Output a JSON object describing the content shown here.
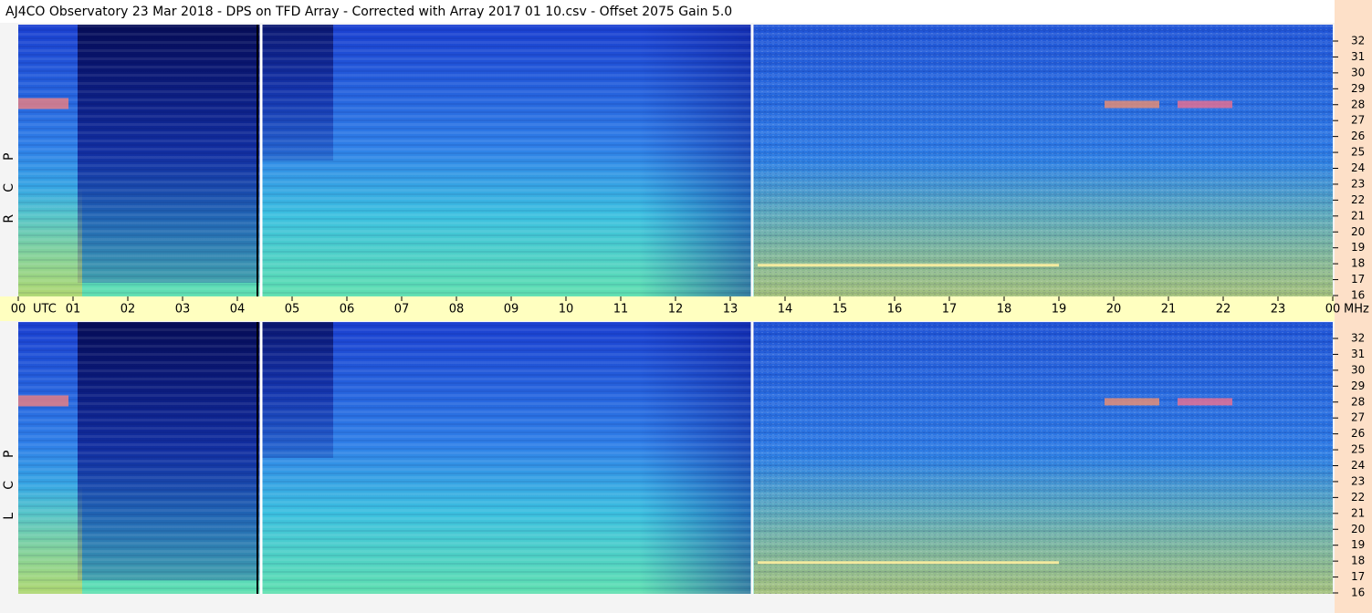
{
  "header": {
    "title": "AJ4CO Observatory  23 Mar 2018  -  DPS on TFD Array  -  Corrected with Array 2017 01 10.csv  -  Offset 2075  Gain 5.0"
  },
  "panels": [
    {
      "letters": [
        "R",
        "C",
        "P"
      ]
    },
    {
      "letters": [
        "L",
        "C",
        "P"
      ]
    }
  ],
  "time_axis": {
    "hours": [
      "00",
      "01",
      "02",
      "03",
      "04",
      "05",
      "06",
      "07",
      "08",
      "09",
      "10",
      "11",
      "12",
      "13",
      "14",
      "15",
      "16",
      "17",
      "18",
      "19",
      "20",
      "21",
      "22",
      "23",
      "00"
    ],
    "start_unit": "UTC",
    "end_unit": "MHz"
  },
  "frequency_axis": {
    "ticks": [
      32,
      31,
      30,
      29,
      28,
      27,
      26,
      25,
      24,
      23,
      22,
      21,
      20,
      19,
      18,
      17,
      16
    ]
  }
}
